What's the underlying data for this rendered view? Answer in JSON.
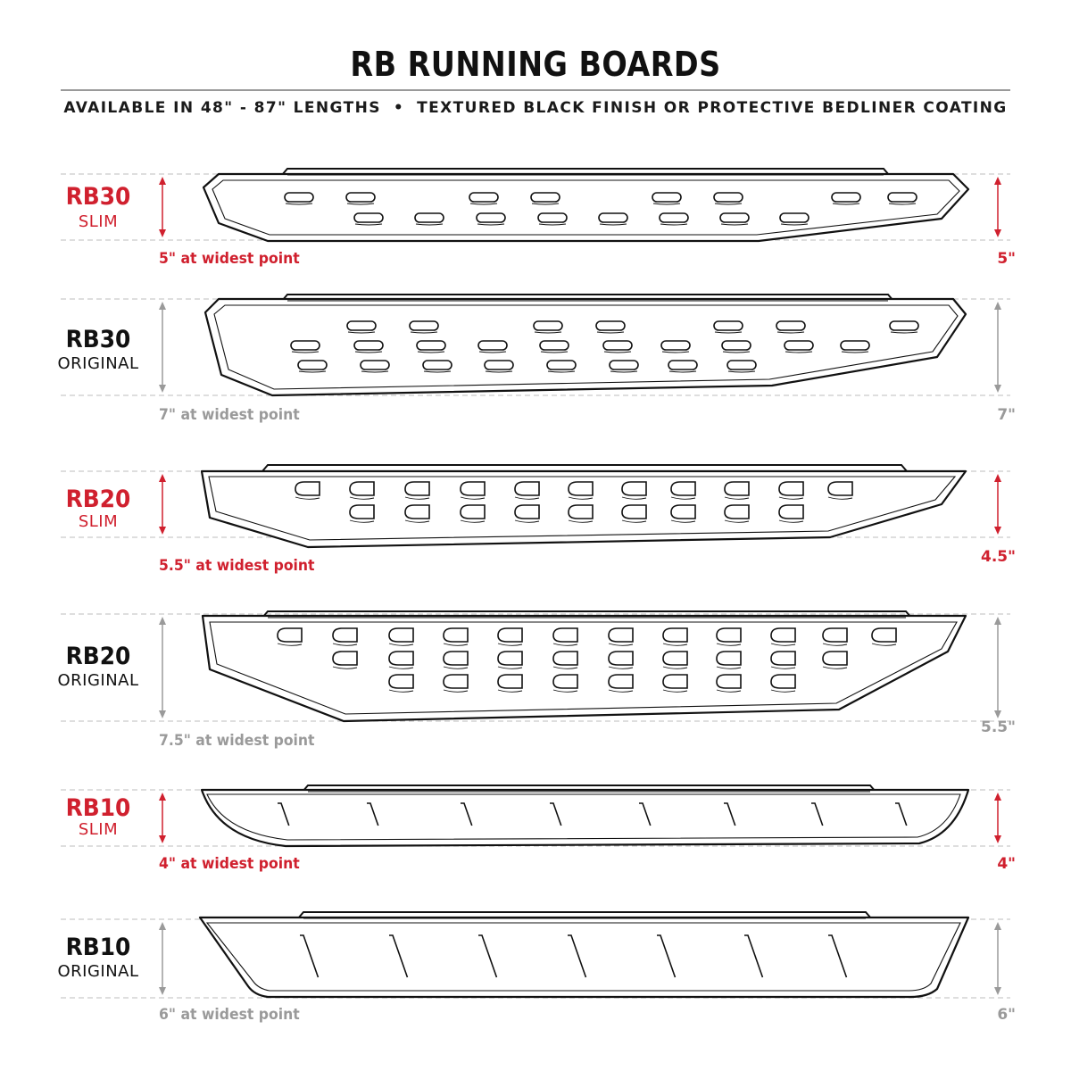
{
  "header": {
    "title": "RB RUNNING BOARDS",
    "subtitle_left": "AVAILABLE IN 48\" - 87\" LENGTHS",
    "subtitle_separator": "•",
    "subtitle_right": "TEXTURED BLACK FINISH OR PROTECTIVE BEDLINER COATING"
  },
  "colors": {
    "accent": "#d0202e",
    "muted": "#9a9a9a",
    "outline": "#111111"
  },
  "boards": [
    {
      "name": "RB30",
      "variant": "SLIM",
      "widest": "5\" at widest point",
      "right_dim": "5\"",
      "color": "accent",
      "hole_style": "slot-icon"
    },
    {
      "name": "RB30",
      "variant": "ORIGINAL",
      "widest": "7\" at widest point",
      "right_dim": "7\"",
      "color": "muted",
      "hole_style": "slot-icon"
    },
    {
      "name": "RB20",
      "variant": "SLIM",
      "widest": "5.5\" at widest point",
      "right_dim": "4.5\"",
      "color": "accent",
      "hole_style": "d-slot-icon"
    },
    {
      "name": "RB20",
      "variant": "ORIGINAL",
      "widest": "7.5\" at widest point",
      "right_dim": "5.5\"",
      "color": "muted",
      "hole_style": "d-slot-icon"
    },
    {
      "name": "RB10",
      "variant": "SLIM",
      "widest": "4\" at widest point",
      "right_dim": "4\"",
      "color": "accent",
      "hole_style": "slash-icon"
    },
    {
      "name": "RB10",
      "variant": "ORIGINAL",
      "widest": "6\" at widest point",
      "right_dim": "6\"",
      "color": "muted",
      "hole_style": "slash-icon"
    }
  ]
}
